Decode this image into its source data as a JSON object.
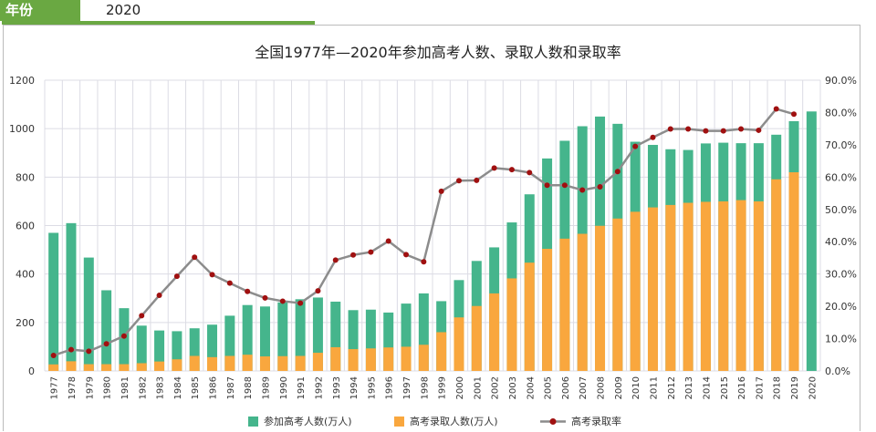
{
  "header": {
    "label": "年份",
    "value": "2020"
  },
  "chart_data": {
    "type": "bar",
    "title": "全国1977年—2020年参加高考人数、录取人数和录取率",
    "categories": [
      "1977",
      "1978",
      "1979",
      "1980",
      "1981",
      "1982",
      "1983",
      "1984",
      "1985",
      "1986",
      "1987",
      "1988",
      "1989",
      "1990",
      "1991",
      "1992",
      "1993",
      "1994",
      "1995",
      "1996",
      "1997",
      "1998",
      "1999",
      "2000",
      "2001",
      "2002",
      "2003",
      "2004",
      "2005",
      "2006",
      "2007",
      "2008",
      "2009",
      "2010",
      "2011",
      "2012",
      "2013",
      "2014",
      "2015",
      "2016",
      "2017",
      "2018",
      "2019",
      "2020"
    ],
    "series": [
      {
        "name": "参加高考人数(万人)",
        "type": "bar",
        "axis": "left",
        "color": "#45b58c",
        "values": [
          570,
          610,
          468,
          333,
          259,
          187,
          167,
          164,
          176,
          191,
          228,
          272,
          266,
          283,
          296,
          303,
          286,
          251,
          253,
          241,
          278,
          320,
          288,
          375,
          454,
          510,
          613,
          729,
          877,
          950,
          1010,
          1050,
          1020,
          946,
          933,
          915,
          912,
          939,
          942,
          940,
          940,
          975,
          1031,
          1071
        ]
      },
      {
        "name": "高考录取人数(万人)",
        "type": "bar",
        "axis": "left",
        "color": "#f9a73e",
        "values": [
          27,
          40,
          28,
          28,
          28,
          32,
          39,
          48,
          62,
          57,
          62,
          67,
          60,
          61,
          62,
          75,
          98,
          90,
          93,
          97,
          100,
          108,
          160,
          221,
          268,
          320,
          382,
          447,
          504,
          546,
          566,
          599,
          629,
          657,
          675,
          685,
          694,
          698,
          700,
          705,
          700,
          791,
          820,
          null
        ]
      },
      {
        "name": "高考录取率",
        "type": "line",
        "axis": "right",
        "color": "#8c8c8c",
        "marker_color": "#a01010",
        "values": [
          4.8,
          6.6,
          6.1,
          8.4,
          10.8,
          17.1,
          23.4,
          29.3,
          35.2,
          29.8,
          27.2,
          24.6,
          22.6,
          21.6,
          21.0,
          24.8,
          34.3,
          35.9,
          36.8,
          40.2,
          36.0,
          33.8,
          55.6,
          58.9,
          59.0,
          62.8,
          62.3,
          61.4,
          57.5,
          57.5,
          56.0,
          57.0,
          61.7,
          69.5,
          72.3,
          74.9,
          74.9,
          74.3,
          74.3,
          74.9,
          74.5,
          81.1,
          79.5,
          null
        ]
      }
    ],
    "ylim": [
      0,
      1200
    ],
    "yticks": [
      "0",
      "200",
      "400",
      "600",
      "800",
      "1000",
      "1200"
    ],
    "y2lim": [
      0,
      90
    ],
    "y2ticks": [
      "0.0%",
      "10.0%",
      "20.0%",
      "30.0%",
      "40.0%",
      "50.0%",
      "60.0%",
      "70.0%",
      "80.0%",
      "90.0%"
    ],
    "grid": true,
    "legend": "bottom"
  }
}
